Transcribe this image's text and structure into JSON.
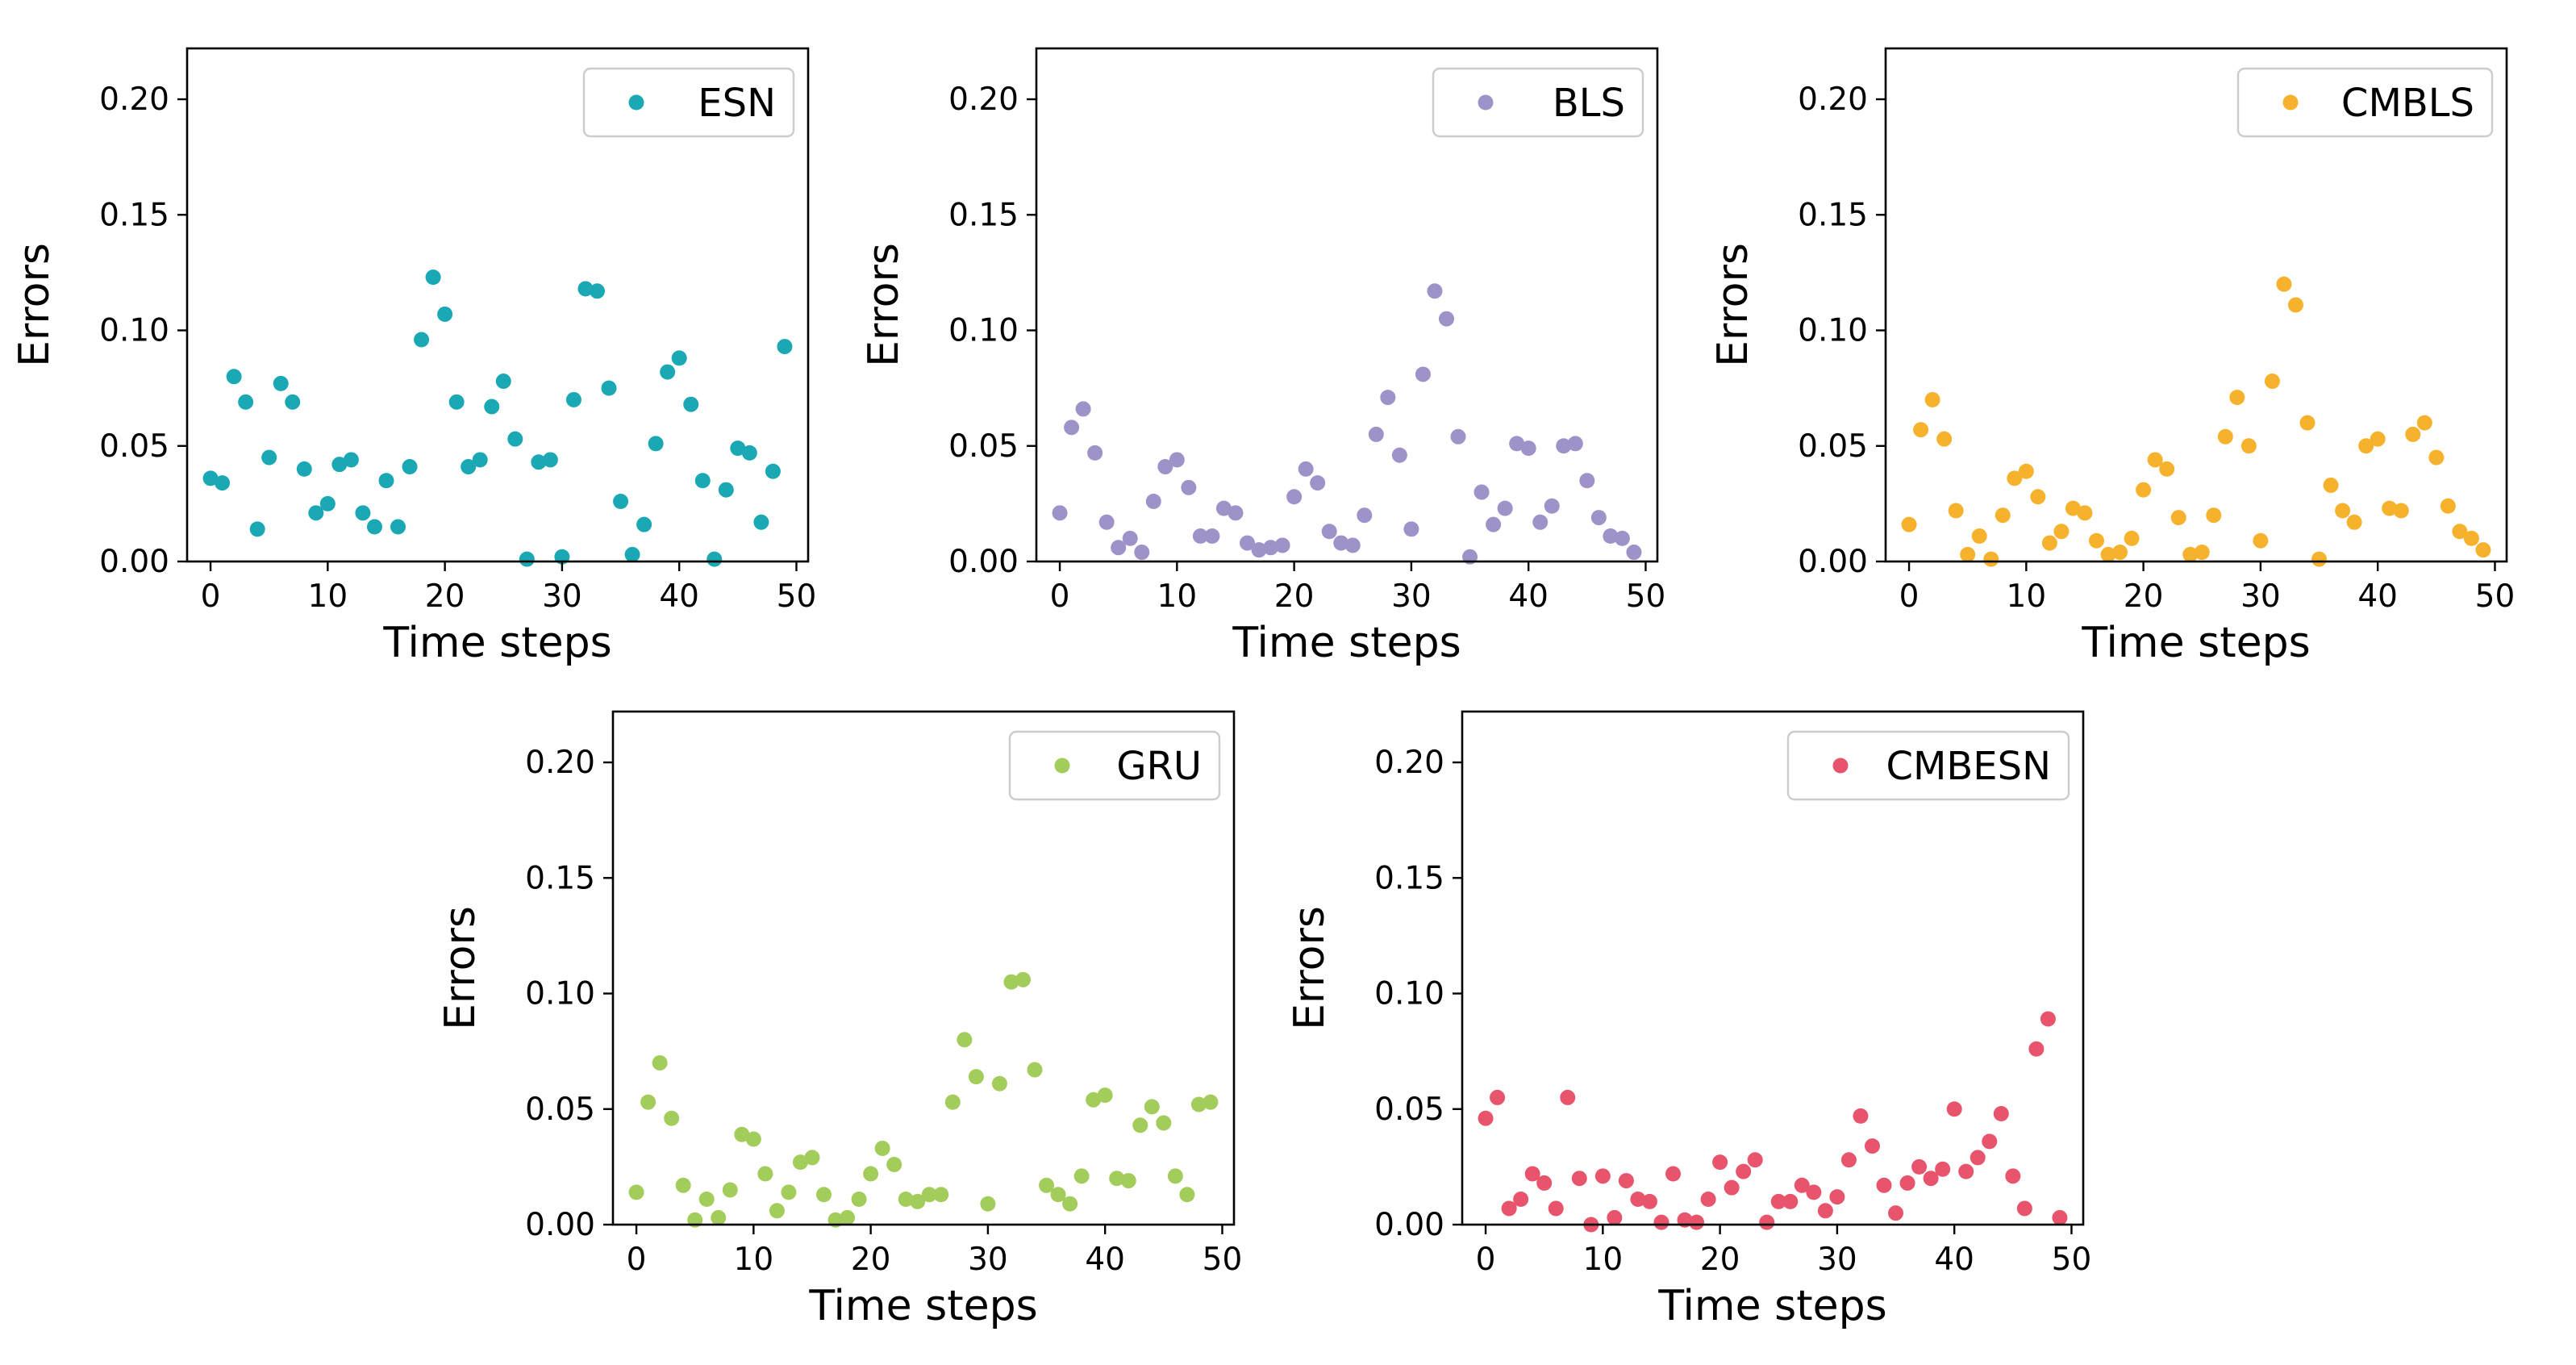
{
  "figure": {
    "background": "#ffffff"
  },
  "chart_data": [
    {
      "type": "scatter",
      "series_name": "ESN",
      "color": "#1aa9b4",
      "xlabel": "Time steps",
      "ylabel": "Errors",
      "xlim": [
        -2,
        51
      ],
      "ylim": [
        0,
        0.222
      ],
      "xticks": [
        "0",
        "10",
        "20",
        "30",
        "40",
        "50"
      ],
      "xtick_values": [
        0,
        10,
        20,
        30,
        40,
        50
      ],
      "yticks": [
        "0.00",
        "0.05",
        "0.10",
        "0.15",
        "0.20"
      ],
      "ytick_values": [
        0,
        0.05,
        0.1,
        0.15,
        0.2
      ],
      "legend": "upper right",
      "x": [
        0,
        1,
        2,
        3,
        4,
        5,
        6,
        7,
        8,
        9,
        10,
        11,
        12,
        13,
        14,
        15,
        16,
        17,
        18,
        19,
        20,
        21,
        22,
        23,
        24,
        25,
        26,
        27,
        28,
        29,
        30,
        31,
        32,
        33,
        34,
        35,
        36,
        37,
        38,
        39,
        40,
        41,
        42,
        43,
        44,
        45,
        46,
        47,
        48,
        49
      ],
      "y": [
        0.036,
        0.034,
        0.08,
        0.069,
        0.014,
        0.045,
        0.077,
        0.069,
        0.04,
        0.021,
        0.025,
        0.042,
        0.044,
        0.021,
        0.015,
        0.035,
        0.015,
        0.041,
        0.096,
        0.123,
        0.107,
        0.069,
        0.041,
        0.044,
        0.067,
        0.078,
        0.053,
        0.001,
        0.043,
        0.044,
        0.002,
        0.07,
        0.118,
        0.117,
        0.075,
        0.026,
        0.003,
        0.016,
        0.051,
        0.082,
        0.088,
        0.068,
        0.035,
        0.001,
        0.031,
        0.049,
        0.047,
        0.017,
        0.039,
        0.093
      ]
    },
    {
      "type": "scatter",
      "series_name": "BLS",
      "color": "#9e92c9",
      "xlabel": "Time steps",
      "ylabel": "Errors",
      "xlim": [
        -2,
        51
      ],
      "ylim": [
        0,
        0.222
      ],
      "xticks": [
        "0",
        "10",
        "20",
        "30",
        "40",
        "50"
      ],
      "xtick_values": [
        0,
        10,
        20,
        30,
        40,
        50
      ],
      "yticks": [
        "0.00",
        "0.05",
        "0.10",
        "0.15",
        "0.20"
      ],
      "ytick_values": [
        0,
        0.05,
        0.1,
        0.15,
        0.2
      ],
      "legend": "upper right",
      "x": [
        0,
        1,
        2,
        3,
        4,
        5,
        6,
        7,
        8,
        9,
        10,
        11,
        12,
        13,
        14,
        15,
        16,
        17,
        18,
        19,
        20,
        21,
        22,
        23,
        24,
        25,
        26,
        27,
        28,
        29,
        30,
        31,
        32,
        33,
        34,
        35,
        36,
        37,
        38,
        39,
        40,
        41,
        42,
        43,
        44,
        45,
        46,
        47,
        48,
        49
      ],
      "y": [
        0.021,
        0.058,
        0.066,
        0.047,
        0.017,
        0.006,
        0.01,
        0.004,
        0.026,
        0.041,
        0.044,
        0.032,
        0.011,
        0.011,
        0.023,
        0.021,
        0.008,
        0.005,
        0.006,
        0.007,
        0.028,
        0.04,
        0.034,
        0.013,
        0.008,
        0.007,
        0.02,
        0.055,
        0.071,
        0.046,
        0.014,
        0.081,
        0.117,
        0.105,
        0.054,
        0.002,
        0.03,
        0.016,
        0.023,
        0.051,
        0.049,
        0.017,
        0.024,
        0.05,
        0.051,
        0.035,
        0.019,
        0.011,
        0.01,
        0.004
      ]
    },
    {
      "type": "scatter",
      "series_name": "CMBLS",
      "color": "#f7b22d",
      "xlabel": "Time steps",
      "ylabel": "Errors",
      "xlim": [
        -2,
        51
      ],
      "ylim": [
        0,
        0.222
      ],
      "xticks": [
        "0",
        "10",
        "20",
        "30",
        "40",
        "50"
      ],
      "xtick_values": [
        0,
        10,
        20,
        30,
        40,
        50
      ],
      "yticks": [
        "0.00",
        "0.05",
        "0.10",
        "0.15",
        "0.20"
      ],
      "ytick_values": [
        0,
        0.05,
        0.1,
        0.15,
        0.2
      ],
      "legend": "upper right",
      "x": [
        0,
        1,
        2,
        3,
        4,
        5,
        6,
        7,
        8,
        9,
        10,
        11,
        12,
        13,
        14,
        15,
        16,
        17,
        18,
        19,
        20,
        21,
        22,
        23,
        24,
        25,
        26,
        27,
        28,
        29,
        30,
        31,
        32,
        33,
        34,
        35,
        36,
        37,
        38,
        39,
        40,
        41,
        42,
        43,
        44,
        45,
        46,
        47,
        48,
        49
      ],
      "y": [
        0.016,
        0.057,
        0.07,
        0.053,
        0.022,
        0.003,
        0.011,
        0.001,
        0.02,
        0.036,
        0.039,
        0.028,
        0.008,
        0.013,
        0.023,
        0.021,
        0.009,
        0.003,
        0.004,
        0.01,
        0.031,
        0.044,
        0.04,
        0.019,
        0.003,
        0.004,
        0.02,
        0.054,
        0.071,
        0.05,
        0.009,
        0.078,
        0.12,
        0.111,
        0.06,
        0.001,
        0.033,
        0.022,
        0.017,
        0.05,
        0.053,
        0.023,
        0.022,
        0.055,
        0.06,
        0.045,
        0.024,
        0.013,
        0.01,
        0.005
      ]
    },
    {
      "type": "scatter",
      "series_name": "GRU",
      "color": "#a2cd5a",
      "xlabel": "Time steps",
      "ylabel": "Errors",
      "xlim": [
        -2,
        51
      ],
      "ylim": [
        0,
        0.222
      ],
      "xticks": [
        "0",
        "10",
        "20",
        "30",
        "40",
        "50"
      ],
      "xtick_values": [
        0,
        10,
        20,
        30,
        40,
        50
      ],
      "yticks": [
        "0.00",
        "0.05",
        "0.10",
        "0.15",
        "0.20"
      ],
      "ytick_values": [
        0,
        0.05,
        0.1,
        0.15,
        0.2
      ],
      "legend": "upper right",
      "x": [
        0,
        1,
        2,
        3,
        4,
        5,
        6,
        7,
        8,
        9,
        10,
        11,
        12,
        13,
        14,
        15,
        16,
        17,
        18,
        19,
        20,
        21,
        22,
        23,
        24,
        25,
        26,
        27,
        28,
        29,
        30,
        31,
        32,
        33,
        34,
        35,
        36,
        37,
        38,
        39,
        40,
        41,
        42,
        43,
        44,
        45,
        46,
        47,
        48,
        49
      ],
      "y": [
        0.014,
        0.053,
        0.07,
        0.046,
        0.017,
        0.002,
        0.011,
        0.003,
        0.015,
        0.039,
        0.037,
        0.022,
        0.006,
        0.014,
        0.027,
        0.029,
        0.013,
        0.002,
        0.003,
        0.011,
        0.022,
        0.033,
        0.026,
        0.011,
        0.01,
        0.013,
        0.013,
        0.053,
        0.08,
        0.064,
        0.009,
        0.061,
        0.105,
        0.106,
        0.067,
        0.017,
        0.013,
        0.009,
        0.021,
        0.054,
        0.056,
        0.02,
        0.019,
        0.043,
        0.051,
        0.044,
        0.021,
        0.013,
        0.052,
        0.053
      ]
    },
    {
      "type": "scatter",
      "series_name": "CMBESN",
      "color": "#e8546b",
      "xlabel": "Time steps",
      "ylabel": "Errors",
      "xlim": [
        -2,
        51
      ],
      "ylim": [
        0,
        0.222
      ],
      "xticks": [
        "0",
        "10",
        "20",
        "30",
        "40",
        "50"
      ],
      "xtick_values": [
        0,
        10,
        20,
        30,
        40,
        50
      ],
      "yticks": [
        "0.00",
        "0.05",
        "0.10",
        "0.15",
        "0.20"
      ],
      "ytick_values": [
        0,
        0.05,
        0.1,
        0.15,
        0.2
      ],
      "legend": "upper right",
      "x": [
        0,
        1,
        2,
        3,
        4,
        5,
        6,
        7,
        8,
        9,
        10,
        11,
        12,
        13,
        14,
        15,
        16,
        17,
        18,
        19,
        20,
        21,
        22,
        23,
        24,
        25,
        26,
        27,
        28,
        29,
        30,
        31,
        32,
        33,
        34,
        35,
        36,
        37,
        38,
        39,
        40,
        41,
        42,
        43,
        44,
        45,
        46,
        47,
        48,
        49
      ],
      "y": [
        0.046,
        0.055,
        0.007,
        0.011,
        0.022,
        0.018,
        0.007,
        0.055,
        0.02,
        0.0,
        0.021,
        0.003,
        0.019,
        0.011,
        0.01,
        0.001,
        0.022,
        0.002,
        0.001,
        0.011,
        0.027,
        0.016,
        0.023,
        0.028,
        0.001,
        0.01,
        0.01,
        0.017,
        0.014,
        0.006,
        0.012,
        0.028,
        0.047,
        0.034,
        0.017,
        0.005,
        0.018,
        0.025,
        0.02,
        0.024,
        0.05,
        0.023,
        0.029,
        0.036,
        0.048,
        0.021,
        0.007,
        0.076,
        0.089,
        0.003
      ]
    }
  ]
}
